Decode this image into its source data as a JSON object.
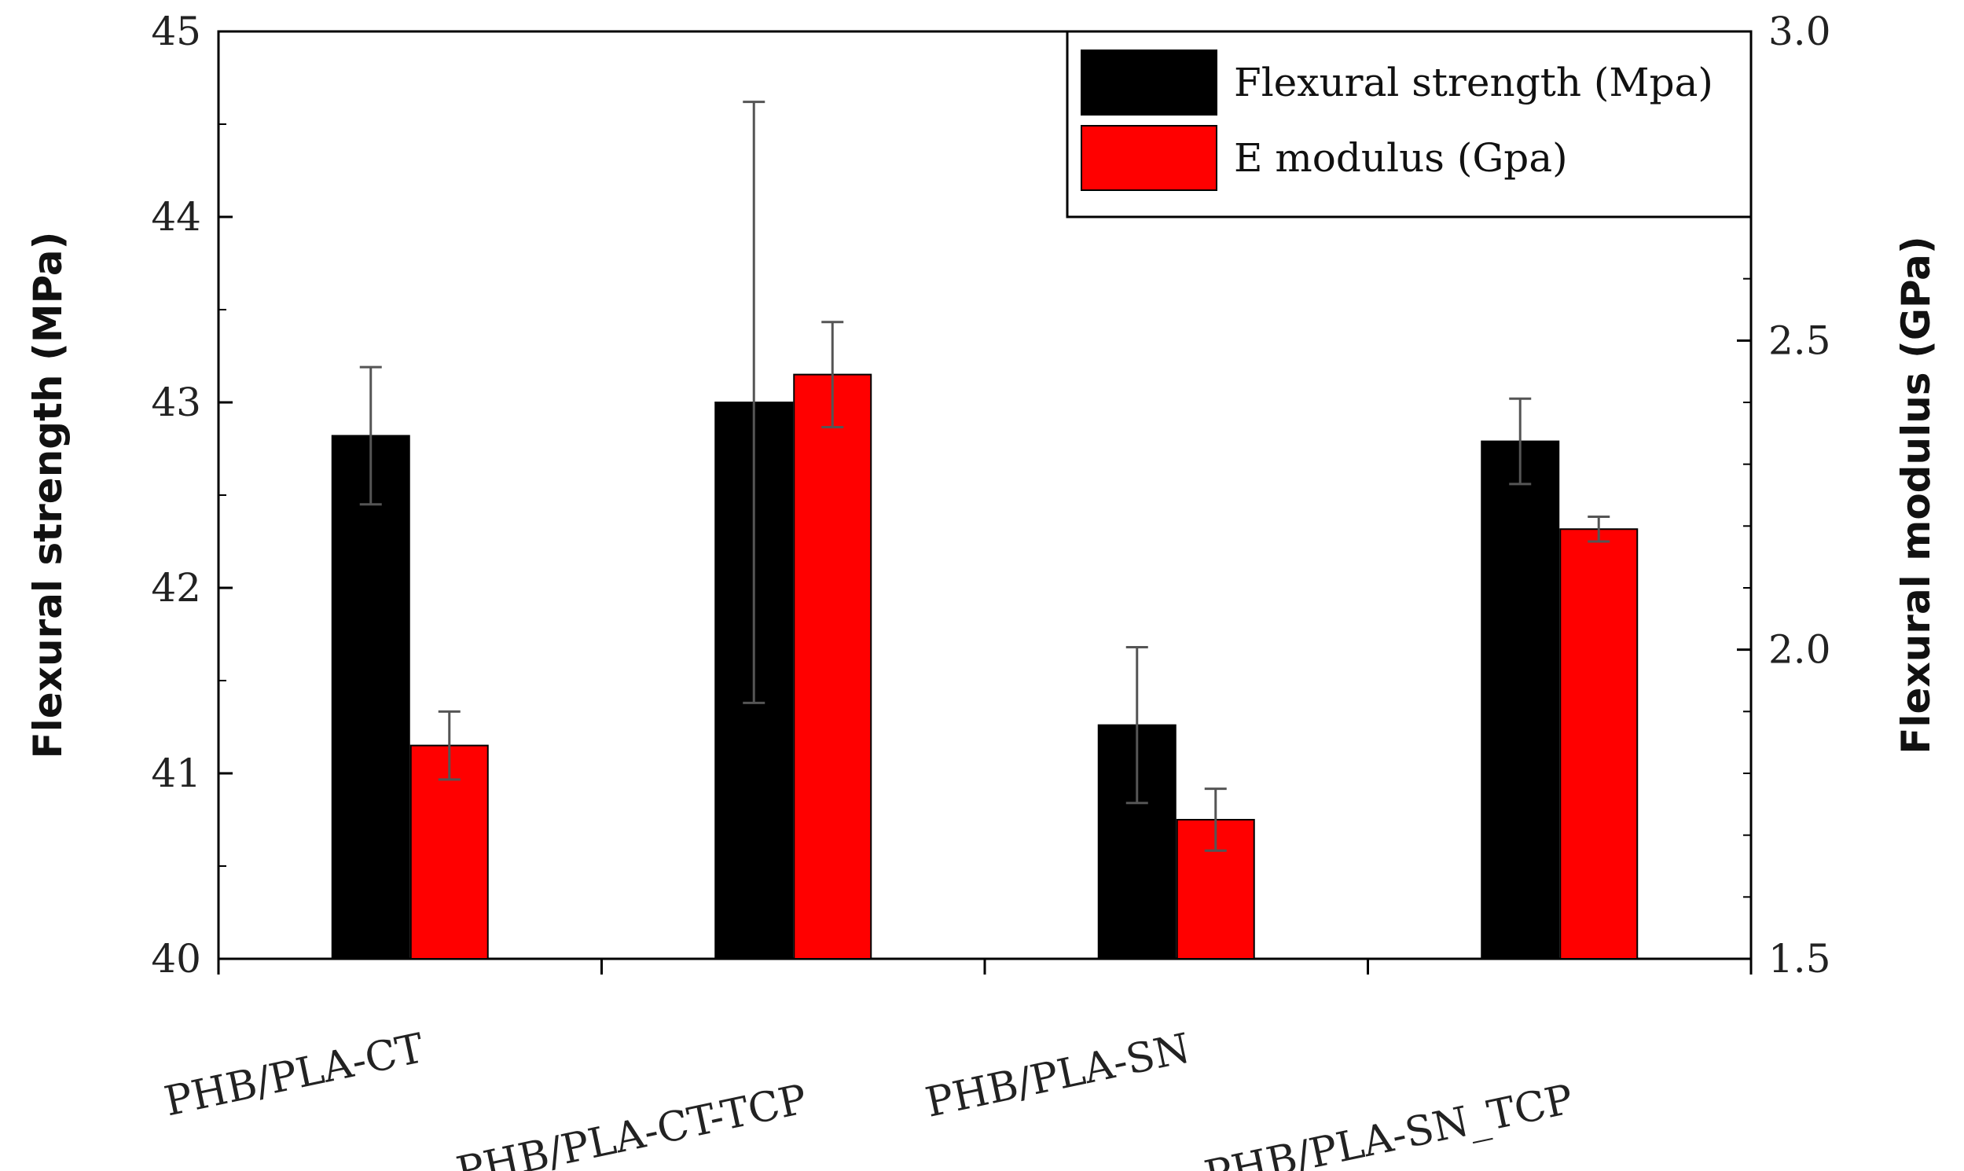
{
  "chart_data": {
    "type": "bar",
    "categories": [
      "PHB/PLA-CT",
      "PHB/PLA-CT-TCP",
      "PHB/PLA-SN",
      "PHB/PLA-SN_TCP"
    ],
    "series": [
      {
        "name": "Flexural strength (Mpa)",
        "axis": "left",
        "color": "#000000",
        "values": [
          42.82,
          43.0,
          41.26,
          42.79
        ],
        "error": [
          0.37,
          1.62,
          0.42,
          0.23
        ]
      },
      {
        "name": "E modulus (Gpa)",
        "axis": "right",
        "color": "#ff0000",
        "values": [
          1.845,
          2.445,
          1.725,
          2.195
        ],
        "error": [
          0.055,
          0.085,
          0.05,
          0.02
        ]
      }
    ],
    "ylabel_left": "Flexural strength (MPa)",
    "ylabel_right": "Flexural modulus (GPa)",
    "ylim_left": [
      40,
      45
    ],
    "ylim_right": [
      1.5,
      3.0
    ],
    "yticks_left": [
      "40",
      "41",
      "42",
      "43",
      "44",
      "45"
    ],
    "yticks_right": [
      "1.5",
      "2.0",
      "2.5",
      "3.0"
    ],
    "legend_position": "top-right"
  }
}
